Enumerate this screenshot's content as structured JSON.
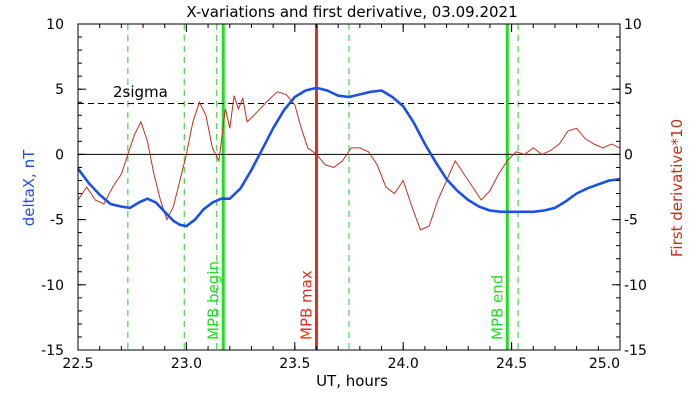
{
  "chart_data": {
    "type": "line",
    "title": "X-variations and first derivative, 03.09.2021",
    "xlabel": "UT, hours",
    "ylabel_left": "deltaX, nT",
    "ylabel_right": "First derivative*10",
    "xlim": [
      22.5,
      25.0
    ],
    "ylim": [
      -15,
      10
    ],
    "x_ticks": [
      22.5,
      23.0,
      23.5,
      24.0,
      24.5,
      25.0
    ],
    "x_tick_labels": [
      "22.5",
      "23.0",
      "23.5",
      "24.0",
      "24.5",
      "25.0"
    ],
    "y_ticks": [
      10,
      5,
      0,
      -5,
      -10,
      -15
    ],
    "y_tick_labels": [
      "10",
      "5",
      "0",
      "-5",
      "-10",
      "-15"
    ],
    "grid": false,
    "colors": {
      "deltax": "#1a50e6",
      "derivative": "#c0301a",
      "mpb_max": "#e03020",
      "mpb_begin_end": "#22dd22",
      "dashed_green": "#22cc22"
    },
    "series": [
      {
        "name": "deltaX, nT",
        "axis": "left",
        "x": [
          22.5,
          22.55,
          22.6,
          22.65,
          22.7,
          22.74,
          22.78,
          22.82,
          22.86,
          22.9,
          22.94,
          22.97,
          23.0,
          23.04,
          23.08,
          23.12,
          23.16,
          23.2,
          23.25,
          23.3,
          23.35,
          23.4,
          23.45,
          23.5,
          23.55,
          23.6,
          23.65,
          23.7,
          23.75,
          23.8,
          23.85,
          23.9,
          23.95,
          24.0,
          24.05,
          24.1,
          24.15,
          24.2,
          24.25,
          24.3,
          24.35,
          24.4,
          24.45,
          24.5,
          24.55,
          24.6,
          24.65,
          24.7,
          24.75,
          24.8,
          24.85,
          24.9,
          24.95,
          25.0
        ],
        "values": [
          -1.1,
          -2.2,
          -3.1,
          -3.8,
          -4.0,
          -4.1,
          -3.7,
          -3.4,
          -3.7,
          -4.4,
          -5.1,
          -5.4,
          -5.5,
          -5.0,
          -4.2,
          -3.7,
          -3.4,
          -3.4,
          -2.6,
          -1.2,
          0.4,
          2.0,
          3.4,
          4.4,
          4.9,
          5.1,
          4.9,
          4.5,
          4.4,
          4.6,
          4.8,
          4.9,
          4.4,
          3.7,
          2.4,
          0.8,
          -0.6,
          -1.9,
          -2.8,
          -3.5,
          -4.0,
          -4.3,
          -4.4,
          -4.4,
          -4.4,
          -4.4,
          -4.3,
          -4.1,
          -3.6,
          -3.0,
          -2.6,
          -2.3,
          -2.0,
          -1.9
        ]
      },
      {
        "name": "First derivative*10",
        "axis": "right",
        "x": [
          22.5,
          22.54,
          22.58,
          22.62,
          22.66,
          22.7,
          22.73,
          22.76,
          22.79,
          22.82,
          22.85,
          22.88,
          22.91,
          22.94,
          22.97,
          23.0,
          23.03,
          23.06,
          23.09,
          23.12,
          23.15,
          23.18,
          23.2,
          23.22,
          23.24,
          23.26,
          23.28,
          23.3,
          23.34,
          23.38,
          23.42,
          23.46,
          23.5,
          23.53,
          23.56,
          23.6,
          23.64,
          23.68,
          23.72,
          23.76,
          23.8,
          23.84,
          23.88,
          23.92,
          23.96,
          24.0,
          24.04,
          24.08,
          24.12,
          24.16,
          24.2,
          24.24,
          24.28,
          24.32,
          24.36,
          24.4,
          24.44,
          24.48,
          24.52,
          24.56,
          24.6,
          24.64,
          24.68,
          24.72,
          24.76,
          24.8,
          24.84,
          24.88,
          24.92,
          24.96,
          25.0
        ],
        "values": [
          -3.5,
          -2.5,
          -3.5,
          -3.8,
          -2.5,
          -1.5,
          0.0,
          1.5,
          2.5,
          1.0,
          -1.5,
          -3.5,
          -5.0,
          -4.0,
          -2.0,
          0.0,
          2.5,
          4.0,
          3.0,
          0.5,
          -0.5,
          3.5,
          2.0,
          4.5,
          3.5,
          4.3,
          2.5,
          2.8,
          3.5,
          4.2,
          4.8,
          4.6,
          3.8,
          2.0,
          0.5,
          0.0,
          -0.8,
          -1.0,
          -0.5,
          0.5,
          0.5,
          0.2,
          -0.8,
          -2.5,
          -3.0,
          -2.0,
          -4.0,
          -5.8,
          -5.5,
          -3.5,
          -2.0,
          -0.5,
          -1.5,
          -2.5,
          -3.5,
          -2.8,
          -1.5,
          -0.5,
          0.2,
          0.0,
          0.5,
          0.0,
          0.3,
          0.8,
          1.8,
          2.0,
          1.2,
          0.8,
          0.5,
          0.8,
          0.5
        ]
      }
    ],
    "threshold": {
      "label": "2sigma",
      "value": 3.9
    },
    "zero_line": 0,
    "vertical_markers": [
      {
        "label": "MPB begin",
        "x": 23.17,
        "color": "#22dd22"
      },
      {
        "label": "MPB max",
        "x": 23.6,
        "color": "#e03020"
      },
      {
        "label": "MPB end",
        "x": 24.48,
        "color": "#22dd22"
      }
    ],
    "dashed_markers_x": [
      22.73,
      22.99,
      23.14,
      23.75,
      24.53
    ]
  }
}
